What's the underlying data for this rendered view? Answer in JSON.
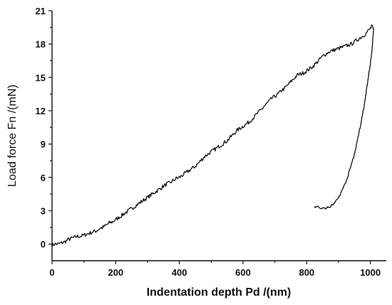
{
  "chart_data": {
    "type": "line",
    "title": "",
    "xlabel": "Indentation depth   Pd  /(nm)",
    "ylabel": "Load force  Fn  /(mN)",
    "xlim": [
      0,
      1050
    ],
    "ylim": [
      -1.5,
      21
    ],
    "x_ticks": [
      0,
      200,
      400,
      600,
      800,
      1000
    ],
    "y_ticks": [
      0,
      3,
      6,
      9,
      12,
      15,
      18,
      21
    ],
    "grid": false,
    "legend": "none",
    "series": [
      {
        "role": "loading",
        "points": [
          [
            0,
            -0.1
          ],
          [
            10,
            0.0
          ],
          [
            20,
            0.0
          ],
          [
            30,
            0.1
          ],
          [
            40,
            0.2
          ],
          [
            50,
            0.4
          ],
          [
            60,
            0.5
          ],
          [
            70,
            0.6
          ],
          [
            80,
            0.7
          ],
          [
            90,
            0.7
          ],
          [
            100,
            0.8
          ],
          [
            110,
            0.9
          ],
          [
            120,
            1.0
          ],
          [
            130,
            1.1
          ],
          [
            140,
            1.2
          ],
          [
            150,
            1.4
          ],
          [
            160,
            1.5
          ],
          [
            170,
            1.7
          ],
          [
            180,
            1.9
          ],
          [
            190,
            2.0
          ],
          [
            200,
            2.2
          ],
          [
            210,
            2.4
          ],
          [
            220,
            2.6
          ],
          [
            230,
            2.8
          ],
          [
            240,
            3.0
          ],
          [
            250,
            3.2
          ],
          [
            260,
            3.4
          ],
          [
            270,
            3.6
          ],
          [
            280,
            3.8
          ],
          [
            290,
            4.0
          ],
          [
            300,
            4.2
          ],
          [
            310,
            4.4
          ],
          [
            320,
            4.6
          ],
          [
            330,
            4.8
          ],
          [
            340,
            5.0
          ],
          [
            350,
            5.2
          ],
          [
            360,
            5.4
          ],
          [
            370,
            5.5
          ],
          [
            380,
            5.7
          ],
          [
            390,
            5.9
          ],
          [
            400,
            6.0
          ],
          [
            410,
            6.2
          ],
          [
            420,
            6.4
          ],
          [
            430,
            6.6
          ],
          [
            440,
            6.8
          ],
          [
            450,
            7.0
          ],
          [
            460,
            7.3
          ],
          [
            470,
            7.6
          ],
          [
            480,
            7.9
          ],
          [
            490,
            8.1
          ],
          [
            500,
            8.3
          ],
          [
            510,
            8.5
          ],
          [
            520,
            8.7
          ],
          [
            530,
            8.9
          ],
          [
            540,
            9.1
          ],
          [
            550,
            9.3
          ],
          [
            560,
            9.6
          ],
          [
            570,
            9.9
          ],
          [
            580,
            10.2
          ],
          [
            590,
            10.4
          ],
          [
            600,
            10.6
          ],
          [
            610,
            10.8
          ],
          [
            620,
            11.0
          ],
          [
            630,
            11.3
          ],
          [
            640,
            11.6
          ],
          [
            650,
            11.9
          ],
          [
            660,
            12.2
          ],
          [
            670,
            12.5
          ],
          [
            680,
            12.8
          ],
          [
            690,
            13.1
          ],
          [
            700,
            13.3
          ],
          [
            710,
            13.5
          ],
          [
            720,
            13.8
          ],
          [
            730,
            14.0
          ],
          [
            740,
            14.3
          ],
          [
            750,
            14.6
          ],
          [
            760,
            14.9
          ],
          [
            770,
            15.2
          ],
          [
            780,
            15.3
          ],
          [
            790,
            15.4
          ],
          [
            800,
            15.6
          ],
          [
            810,
            15.8
          ],
          [
            820,
            16.0
          ],
          [
            830,
            16.3
          ],
          [
            840,
            16.6
          ],
          [
            850,
            16.9
          ],
          [
            860,
            17.1
          ],
          [
            870,
            17.3
          ],
          [
            880,
            17.4
          ],
          [
            890,
            17.5
          ],
          [
            900,
            17.6
          ],
          [
            910,
            17.7
          ],
          [
            920,
            17.8
          ],
          [
            930,
            17.9
          ],
          [
            940,
            18.0
          ],
          [
            950,
            18.2
          ],
          [
            960,
            18.4
          ],
          [
            970,
            18.6
          ],
          [
            980,
            18.8
          ],
          [
            990,
            19.1
          ],
          [
            1000,
            19.4
          ],
          [
            1005,
            19.6
          ],
          [
            1010,
            19.3
          ]
        ]
      },
      {
        "role": "unloading",
        "points": [
          [
            1010,
            19.3
          ],
          [
            1008,
            18.6
          ],
          [
            1006,
            17.8
          ],
          [
            1003,
            17.0
          ],
          [
            1000,
            16.3
          ],
          [
            995,
            15.3
          ],
          [
            990,
            14.3
          ],
          [
            985,
            13.3
          ],
          [
            980,
            12.4
          ],
          [
            975,
            11.6
          ],
          [
            970,
            10.8
          ],
          [
            965,
            10.1
          ],
          [
            960,
            9.4
          ],
          [
            955,
            8.7
          ],
          [
            950,
            8.1
          ],
          [
            940,
            7.1
          ],
          [
            930,
            6.2
          ],
          [
            920,
            5.4
          ],
          [
            910,
            4.7
          ],
          [
            900,
            4.2
          ],
          [
            890,
            3.8
          ],
          [
            880,
            3.5
          ],
          [
            870,
            3.3
          ],
          [
            860,
            3.2
          ],
          [
            850,
            3.25
          ],
          [
            840,
            3.3
          ],
          [
            830,
            3.35
          ],
          [
            825,
            3.4
          ]
        ]
      }
    ]
  }
}
